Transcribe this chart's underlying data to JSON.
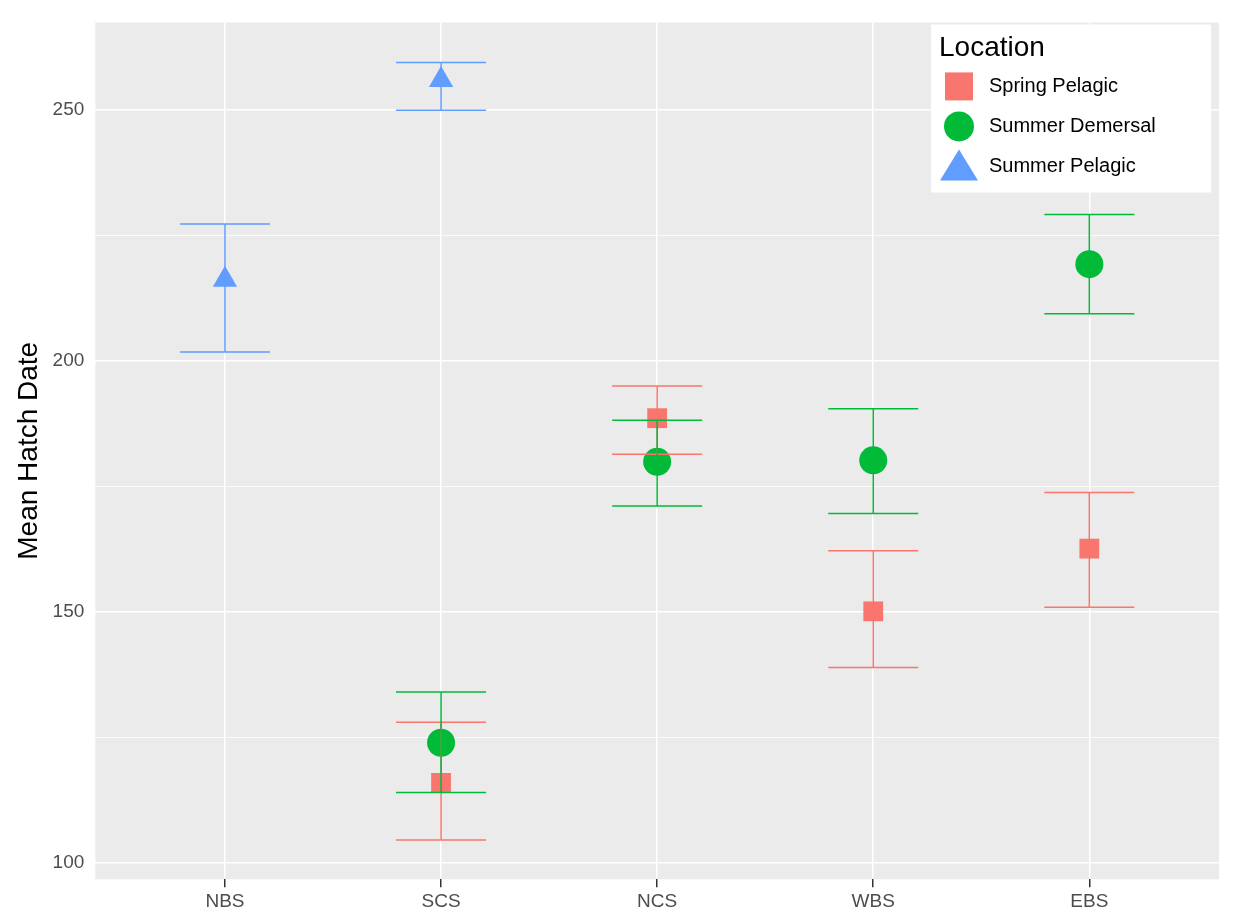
{
  "chart_data": {
    "type": "scatter",
    "ylabel": "Mean Hatch Date",
    "legend_title": "Location",
    "categories": [
      "NBS",
      "SCS",
      "NCS",
      "WBS",
      "EBS"
    ],
    "ylim": [
      96.7,
      267.5
    ],
    "yticks": [
      100,
      {
        "value": 125,
        "label": null
      },
      150,
      {
        "value": 175,
        "label": null
      },
      200,
      {
        "value": 225,
        "label": null
      },
      250
    ],
    "grid": true,
    "legend": "top right",
    "series": [
      {
        "name": "Spring Pelagic",
        "color": "#f8766d",
        "marker": "square",
        "x": [
          "SCS",
          "NCS",
          "WBS",
          "EBS"
        ],
        "values": [
          115.9,
          188.6,
          150.1,
          162.6
        ],
        "errors": [
          [
            104.5,
            128.0
          ],
          [
            181.4,
            195.0
          ],
          [
            138.9,
            162.2
          ],
          [
            150.9,
            173.8
          ]
        ]
      },
      {
        "name": "Summer Demersal",
        "color": "#00ba38",
        "marker": "circle",
        "x": [
          "SCS",
          "NCS",
          "WBS",
          "EBS"
        ],
        "values": [
          123.9,
          179.9,
          180.2,
          219.3
        ],
        "errors": [
          [
            114.0,
            134.0
          ],
          [
            171.1,
            188.2
          ],
          [
            169.6,
            190.5
          ],
          [
            209.4,
            229.2
          ]
        ]
      },
      {
        "name": "Summer Pelagic",
        "color": "#619cff",
        "marker": "triangle",
        "x": [
          "NBS",
          "SCS"
        ],
        "values": [
          216.2,
          256.0
        ],
        "errors": [
          [
            201.8,
            227.3
          ],
          [
            250.0,
            259.5
          ]
        ]
      }
    ]
  }
}
